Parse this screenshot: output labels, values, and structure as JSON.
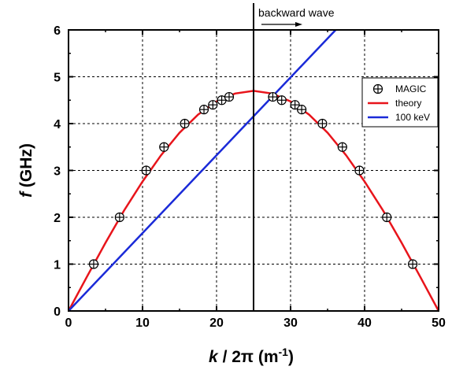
{
  "chart_data": {
    "type": "scatter",
    "xlabel": "k / 2π (m⁻¹)",
    "ylabel": "f (GHz)",
    "xlabel_parts": {
      "k": "k",
      "mid": " / 2π (m",
      "sup": "-1",
      "end": ")"
    },
    "ylabel_parts": {
      "f": "f",
      "rest": " (GHz)"
    },
    "xlim": [
      0,
      50
    ],
    "ylim": [
      0,
      6
    ],
    "x_ticks": [
      "0",
      "10",
      "20",
      "30",
      "40",
      "50"
    ],
    "y_ticks": [
      "0",
      "1",
      "2",
      "3",
      "4",
      "5",
      "6"
    ],
    "grid": true,
    "legend_position": "top-right",
    "series": [
      {
        "name": "MAGIC",
        "kind": "markers",
        "color": "#000000",
        "x": [
          3.4,
          6.9,
          10.5,
          12.9,
          15.7,
          18.3,
          19.5,
          20.7,
          21.7,
          27.6,
          28.8,
          30.6,
          31.5,
          34.3,
          37.0,
          39.3,
          43.0,
          46.5
        ],
        "y": [
          1.0,
          2.0,
          3.0,
          3.5,
          4.0,
          4.3,
          4.4,
          4.5,
          4.57,
          4.57,
          4.5,
          4.4,
          4.3,
          4.0,
          3.5,
          3.0,
          2.0,
          1.0
        ]
      },
      {
        "name": "theory",
        "kind": "line",
        "color": "#e8141b",
        "peak_x": 25,
        "peak_y": 4.7,
        "x": [
          0,
          2.5,
          5,
          7.5,
          10,
          12.5,
          15,
          17.5,
          20,
          22.5,
          25,
          27.5,
          30,
          32.5,
          35,
          37.5,
          40,
          42.5,
          45,
          47.5,
          50
        ],
        "y": [
          0,
          0.734,
          1.456,
          2.143,
          2.763,
          3.324,
          3.805,
          4.192,
          4.472,
          4.642,
          4.7,
          4.642,
          4.472,
          4.192,
          3.805,
          3.324,
          2.763,
          2.143,
          1.456,
          0.734,
          0
        ]
      },
      {
        "name": "100 keV",
        "kind": "line",
        "color": "#1a2ad8",
        "x": [
          0,
          36.1
        ],
        "y": [
          0,
          6
        ]
      }
    ],
    "vertical_line": {
      "x": 25,
      "color": "#000000"
    },
    "annotation": {
      "text": "backward wave"
    }
  }
}
